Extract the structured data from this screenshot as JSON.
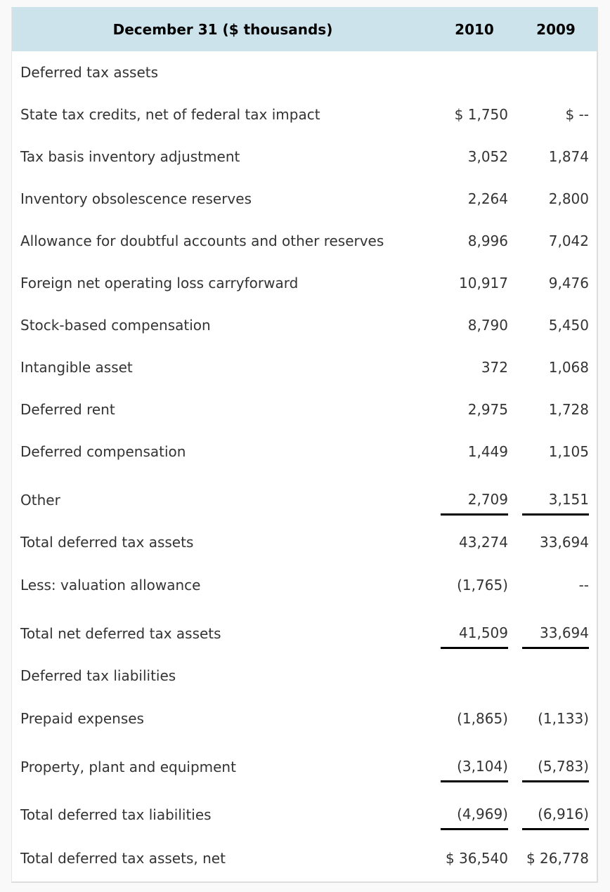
{
  "header": {
    "label": "December 31 ($ thousands)",
    "col1": "2010",
    "col2": "2009"
  },
  "rows": [
    {
      "label": "Deferred tax assets",
      "v2010": "",
      "v2009": ""
    },
    {
      "label": "State tax credits, net of federal tax impact",
      "v2010": "$ 1,750",
      "v2009": "$ --"
    },
    {
      "label": "Tax basis inventory adjustment",
      "v2010": "3,052",
      "v2009": "1,874"
    },
    {
      "label": "Inventory obsolescence reserves",
      "v2010": "2,264",
      "v2009": "2,800"
    },
    {
      "label": "Allowance for doubtful accounts and other reserves",
      "v2010": "8,996",
      "v2009": "7,042"
    },
    {
      "label": "Foreign net operating loss carryforward",
      "v2010": "10,917",
      "v2009": "9,476"
    },
    {
      "label": "Stock-based compensation",
      "v2010": "8,790",
      "v2009": "5,450"
    },
    {
      "label": "Intangible asset",
      "v2010": "372",
      "v2009": "1,068"
    },
    {
      "label": "Deferred rent",
      "v2010": "2,975",
      "v2009": "1,728"
    },
    {
      "label": "Deferred compensation",
      "v2010": "1,449",
      "v2009": "1,105"
    },
    {
      "label": "Other",
      "v2010": "2,709",
      "v2009": "3,151"
    },
    {
      "label": "Total deferred tax assets",
      "v2010": "43,274",
      "v2009": "33,694"
    },
    {
      "label": "Less: valuation allowance",
      "v2010": "(1,765)",
      "v2009": "--"
    },
    {
      "label": "Total net deferred tax assets",
      "v2010": "41,509",
      "v2009": "33,694"
    },
    {
      "label": "Deferred tax liabilities",
      "v2010": "",
      "v2009": ""
    },
    {
      "label": "Prepaid expenses",
      "v2010": "(1,865)",
      "v2009": "(1,133)"
    },
    {
      "label": "Property, plant and equipment",
      "v2010": "(3,104)",
      "v2009": "(5,783)"
    },
    {
      "label": "Total deferred tax liabilities",
      "v2010": "(4,969)",
      "v2009": "(6,916)"
    },
    {
      "label": "Total deferred tax assets, net",
      "v2010": "$ 36,540",
      "v2009": "$ 26,778"
    }
  ]
}
